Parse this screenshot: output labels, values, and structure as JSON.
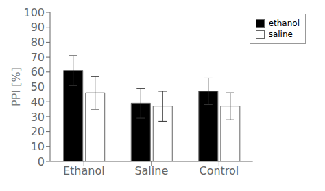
{
  "chart_data": {
    "type": "bar",
    "categories": [
      "Ethanol",
      "Saline",
      "Control"
    ],
    "series": [
      {
        "name": "ethanol",
        "color": "#000000",
        "values": [
          61,
          39,
          47
        ],
        "errors": [
          10,
          10,
          9
        ]
      },
      {
        "name": "saline",
        "color": "#ffffff",
        "values": [
          46,
          37,
          37
        ],
        "errors": [
          11,
          10,
          9
        ]
      }
    ],
    "ylabel": "PPI [%]",
    "ylim": [
      0,
      100
    ],
    "yticks": [
      0,
      10,
      20,
      30,
      40,
      50,
      60,
      70,
      80,
      90,
      100
    ],
    "grid": false,
    "legend": "upper right"
  }
}
